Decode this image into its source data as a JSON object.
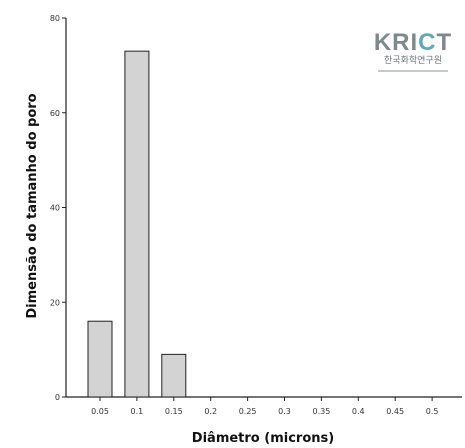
{
  "chart_data": {
    "type": "bar",
    "xlabel": "Diâmetro (microns)",
    "ylabel": "Dimensão do tamanho do poro",
    "ylim": [
      0,
      80
    ],
    "yticks": [
      "0",
      "20",
      "40",
      "60",
      "80"
    ],
    "categories": [
      "0.05",
      "0.1",
      "0.15",
      "0.2",
      "0.25",
      "0.3",
      "0.35",
      "0.4",
      "0.45",
      "0.5"
    ],
    "values": [
      16,
      73,
      9,
      0,
      0,
      0,
      0,
      0,
      0,
      0
    ],
    "bar_color": "#d3d3d3",
    "bar_edge_color": "#222222",
    "grid": false
  },
  "logo": {
    "text": "KRICT",
    "subtext": "한국화학연구원"
  }
}
